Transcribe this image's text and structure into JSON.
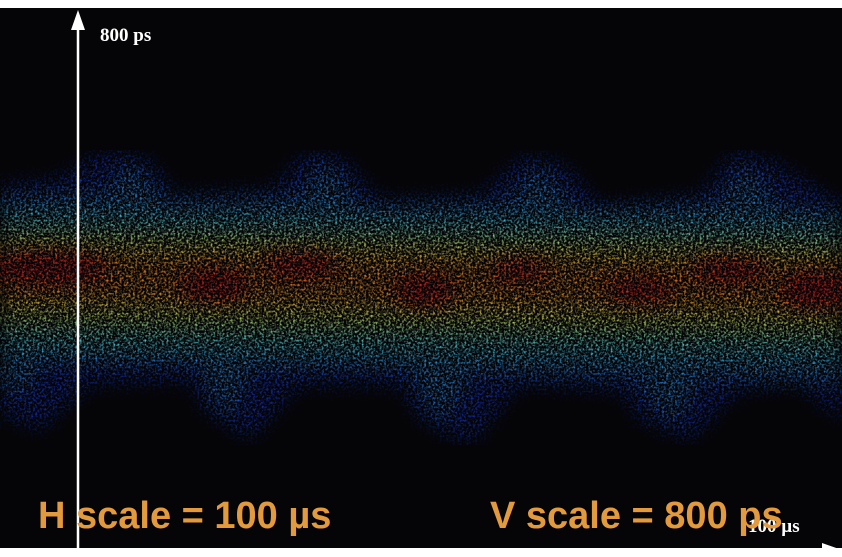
{
  "axis_labels": {
    "vertical": "800 ps",
    "horizontal": "100 µs"
  },
  "captions": {
    "h_scale": "H scale = 100 µs",
    "v_scale": "V scale = 800 ps"
  }
}
